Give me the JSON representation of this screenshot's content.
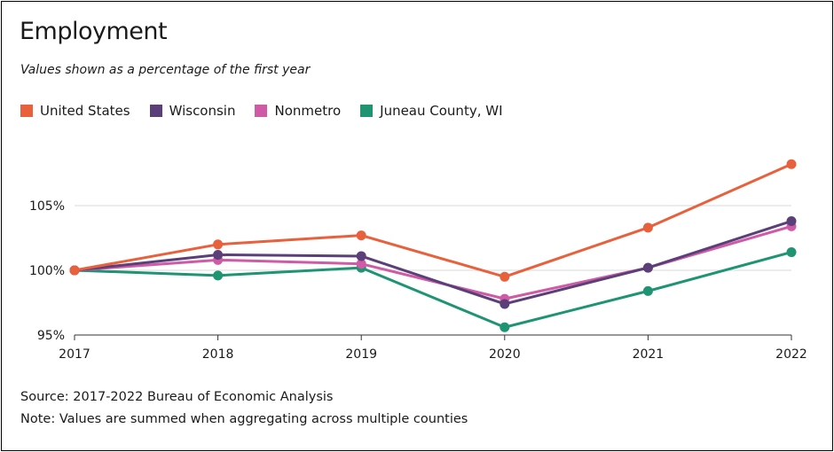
{
  "chart_data": {
    "type": "line",
    "title": "Employment",
    "subtitle": "Values shown as a percentage of the first year",
    "categories": [
      "2017",
      "2018",
      "2019",
      "2020",
      "2021",
      "2022"
    ],
    "y_ticks": [
      {
        "value": 95,
        "label": "95%"
      },
      {
        "value": 100,
        "label": "100%"
      },
      {
        "value": 105,
        "label": "105%"
      }
    ],
    "ylim": [
      95,
      108.5
    ],
    "grid": "horizontal",
    "legend_position": "top-left",
    "series": [
      {
        "name": "United States",
        "color": "#e8603c",
        "values": [
          100,
          102.0,
          102.7,
          99.5,
          103.3,
          108.2
        ]
      },
      {
        "name": "Wisconsin",
        "color": "#5b3f78",
        "values": [
          100,
          101.2,
          101.1,
          97.4,
          100.2,
          103.8
        ]
      },
      {
        "name": "Nonmetro",
        "color": "#cf5aa6",
        "values": [
          100,
          100.8,
          100.5,
          97.8,
          100.2,
          103.4
        ]
      },
      {
        "name": "Juneau County, WI",
        "color": "#1f9473",
        "values": [
          100,
          99.6,
          100.2,
          95.6,
          98.4,
          101.4
        ]
      }
    ]
  },
  "footer": {
    "source": "Source: 2017-2022 Bureau of Economic Analysis",
    "note": "Note: Values are summed when aggregating across multiple counties"
  }
}
